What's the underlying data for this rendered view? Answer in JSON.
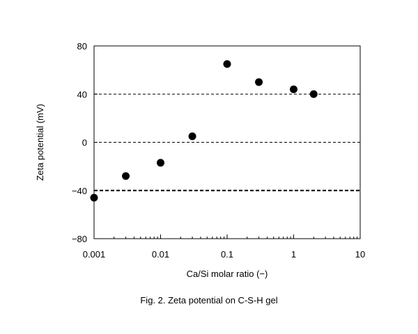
{
  "chart_data": {
    "type": "scatter",
    "x_scale": "log",
    "xlim": [
      0.001,
      10
    ],
    "ylim": [
      -80,
      80
    ],
    "x_ticks": [
      0.001,
      0.01,
      0.1,
      1,
      10
    ],
    "x_tick_labels": [
      "0.001",
      "0.01",
      "0.1",
      "1",
      "10"
    ],
    "y_ticks": [
      -80,
      -40,
      0,
      40,
      80
    ],
    "y_tick_labels": [
      "−80",
      "−40",
      "0",
      "40",
      "80"
    ],
    "xlabel": "Ca/Si molar ratio (−)",
    "ylabel": "Zeta potential (mV)",
    "reference_lines": [
      {
        "y": 40,
        "style": "dashed"
      },
      {
        "y": 0,
        "style": "dashed"
      },
      {
        "y": -40,
        "style": "dashed-bold"
      }
    ],
    "series": [
      {
        "marker_color": "#000000",
        "points": [
          {
            "x": 0.001,
            "y": -46
          },
          {
            "x": 0.003,
            "y": -28
          },
          {
            "x": 0.01,
            "y": -17
          },
          {
            "x": 0.03,
            "y": 5
          },
          {
            "x": 0.1,
            "y": 65
          },
          {
            "x": 0.3,
            "y": 50
          },
          {
            "x": 1,
            "y": 44
          },
          {
            "x": 2,
            "y": 40
          }
        ]
      }
    ]
  },
  "caption": "Fig. 2.  Zeta potential on C-S-H gel"
}
